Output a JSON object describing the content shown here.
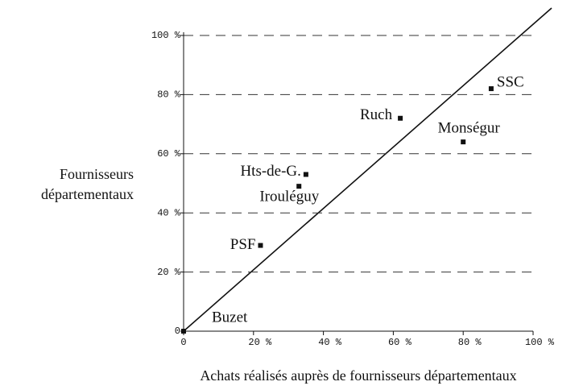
{
  "chart_data": {
    "type": "scatter",
    "xlabel": "Achats réalisés auprès de fournisseurs départementaux",
    "ylabel": [
      "Fournisseurs",
      "départementaux"
    ],
    "categories": [
      "Buzet",
      "PSF",
      "Hts-de-G.",
      "Irouléguy",
      "Ruch",
      "Monségur",
      "SSC"
    ],
    "x": [
      0,
      22,
      35,
      33,
      62,
      80,
      88
    ],
    "values": [
      0,
      29,
      53,
      49,
      72,
      64,
      82
    ],
    "color": "#111111",
    "xlim": [
      0,
      100
    ],
    "ylim": [
      0,
      100
    ],
    "xticks": [
      0,
      {
        "value": 20,
        "label": "20 %"
      },
      {
        "value": 40,
        "label": "40 %"
      },
      {
        "value": 60,
        "label": "60 %"
      },
      {
        "value": 80,
        "label": "80 %"
      },
      {
        "value": 100,
        "label": "100 %"
      }
    ],
    "yticks": [
      0,
      {
        "value": 20,
        "label": "20 %"
      },
      {
        "value": 40,
        "label": "40 %"
      },
      {
        "value": 60,
        "label": "60 %"
      },
      {
        "value": 80,
        "label": "80 %"
      },
      {
        "value": 100,
        "label": "100 %"
      }
    ],
    "grid": true
  }
}
